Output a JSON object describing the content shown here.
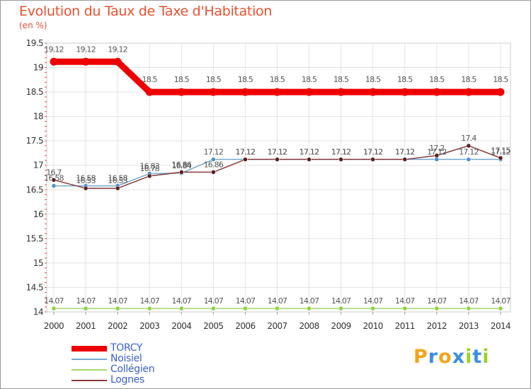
{
  "title": "Evolution du Taux de Taxe d'Habitation",
  "subtitle": "(en %)",
  "logo": {
    "text": "Proxiti",
    "letters": [
      "P",
      "r",
      "o",
      "x",
      "i",
      "t",
      "i"
    ],
    "colors": [
      "#f2a51a",
      "#3a8ee6",
      "#f2a51a",
      "#3a8ee6",
      "#9bd12b",
      "#3a8ee6",
      "#9bd12b"
    ]
  },
  "chart_data": {
    "type": "line",
    "title": "Evolution du Taux de Taxe d'Habitation",
    "ylabel": "(en %)",
    "xlabel": "",
    "categories": [
      "2000",
      "2001",
      "2002",
      "2003",
      "2004",
      "2005",
      "2006",
      "2007",
      "2008",
      "2009",
      "2010",
      "2011",
      "2012",
      "2013",
      "2014"
    ],
    "ylim": [
      14,
      19.5
    ],
    "yticks": [
      "14",
      "14.5",
      "15",
      "15.5",
      "16",
      "16.5",
      "17",
      "17.5",
      "18",
      "18.5",
      "19",
      "19.5"
    ],
    "legend_position": "bottom-left",
    "series": [
      {
        "name": "TORCY",
        "color": "#ee0000",
        "width": 9,
        "marker": "#ee0000",
        "values": [
          19.12,
          19.12,
          19.12,
          18.5,
          18.5,
          18.5,
          18.5,
          18.5,
          18.5,
          18.5,
          18.5,
          18.5,
          18.5,
          18.5,
          18.5
        ],
        "labels": [
          "19.12",
          "19.12",
          "19.12",
          "18.5",
          "18.5",
          "18.5",
          "18.5",
          "18.5",
          "18.5",
          "18.5",
          "18.5",
          "18.5",
          "18.5",
          "18.5",
          "18.5"
        ]
      },
      {
        "name": "Noisiel",
        "color": "#74a9d4",
        "width": 1.5,
        "marker": "#4f8fd0",
        "values": [
          16.58,
          16.58,
          16.58,
          16.83,
          16.84,
          17.12,
          17.12,
          17.12,
          17.12,
          17.12,
          17.12,
          17.12,
          17.12,
          17.12,
          17.12
        ],
        "labels": [
          "16.58",
          "16.58",
          "16.58",
          "16.83",
          "16.84",
          "17.12",
          "17.12",
          "17.12",
          "17.12",
          "17.12",
          "17.12",
          "17.12",
          "17.12",
          "17.12",
          "17.12"
        ]
      },
      {
        "name": "Collégien",
        "color": "#a3d96b",
        "width": 1.5,
        "marker": "#8ed23c",
        "values": [
          14.07,
          14.07,
          14.07,
          14.07,
          14.07,
          14.07,
          14.07,
          14.07,
          14.07,
          14.07,
          14.07,
          14.07,
          14.07,
          14.07,
          14.07
        ],
        "labels": [
          "14.07",
          "14.07",
          "14.07",
          "14.07",
          "14.07",
          "14.07",
          "14.07",
          "14.07",
          "14.07",
          "14.07",
          "14.07",
          "14.07",
          "14.07",
          "14.07",
          "14.07"
        ]
      },
      {
        "name": "Lognes",
        "color": "#8a3a3a",
        "width": 1.5,
        "marker": "#5c1f1f",
        "values": [
          16.7,
          16.53,
          16.53,
          16.78,
          16.86,
          16.86,
          17.12,
          17.12,
          17.12,
          17.12,
          17.12,
          17.12,
          17.2,
          17.4,
          17.15
        ],
        "labels": [
          "16.7",
          "16.53",
          "16.53",
          "16.78",
          "16.86",
          "16.86",
          "17.12",
          "17.12",
          "17.12",
          "17.12",
          "17.12",
          "17.12",
          "17.2",
          "17.4",
          "17.15"
        ]
      }
    ]
  }
}
